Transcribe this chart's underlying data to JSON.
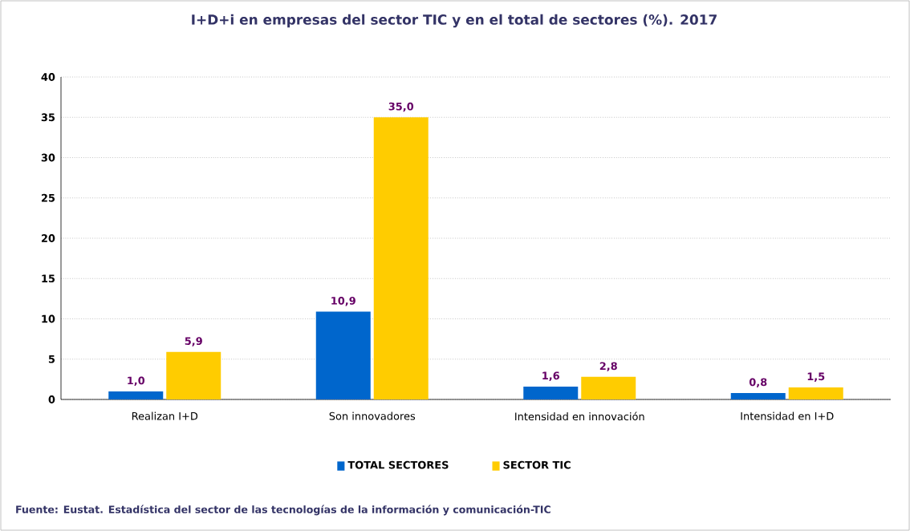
{
  "chart_data": {
    "type": "bar",
    "title": "I+D+i en empresas del sector TIC y en el total de sectores  (%). 2017",
    "categories": [
      "Realizan I+D",
      "Son innovadores",
      "Intensidad en innovación",
      "Intensidad en I+D"
    ],
    "series": [
      {
        "name": "TOTAL SECTORES",
        "color": "#0066cc",
        "values": [
          1.0,
          10.9,
          1.6,
          0.8
        ],
        "value_labels": [
          "1,0",
          "10,9",
          "1,6",
          "0,8"
        ]
      },
      {
        "name": "SECTOR TIC",
        "color": "#ffcc00",
        "values": [
          5.9,
          35.0,
          2.8,
          1.5
        ],
        "value_labels": [
          "5,9",
          "35,0",
          "2,8",
          "1,5"
        ]
      }
    ],
    "ylim": [
      0,
      40
    ],
    "yticks": [
      0,
      5,
      10,
      15,
      20,
      25,
      30,
      35,
      40
    ],
    "grid": "y",
    "legend": "bottom",
    "annotations": [
      "Fuente: Eustat. Estadística del sector de las tecnologías de la información y comunicación-TIC"
    ]
  }
}
